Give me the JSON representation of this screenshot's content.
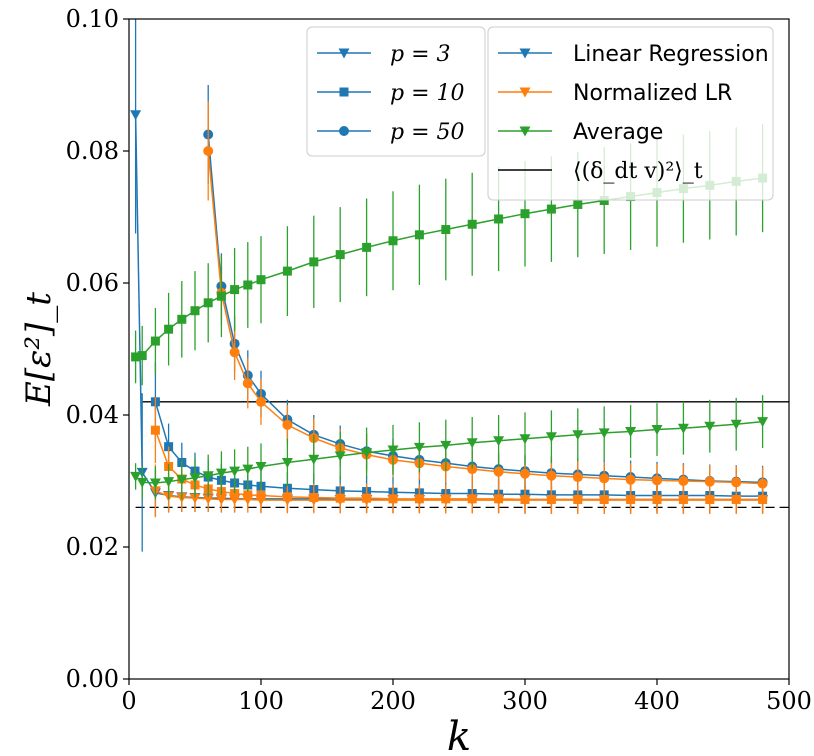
{
  "chart_data": {
    "type": "line",
    "xlabel": "k",
    "ylabel": "E[ε²]_t",
    "xlim": [
      0,
      500
    ],
    "ylim": [
      0.0,
      0.1
    ],
    "x_ticks": [
      "0",
      "100",
      "200",
      "300",
      "400",
      "500"
    ],
    "y_ticks": [
      "0.00",
      "0.02",
      "0.04",
      "0.06",
      "0.08",
      "0.10"
    ],
    "x_tick_values": [
      0,
      100,
      200,
      300,
      400,
      500
    ],
    "y_tick_values": [
      0.0,
      0.02,
      0.04,
      0.06,
      0.08,
      0.1
    ],
    "grid": false,
    "legend_p": {
      "placement": "top-center",
      "entries": [
        {
          "label": "p = 3",
          "marker": "triangle-down"
        },
        {
          "label": "p = 10",
          "marker": "square"
        },
        {
          "label": "p = 50",
          "marker": "circle"
        }
      ]
    },
    "legend_method": {
      "placement": "top-right",
      "entries": [
        {
          "label": "Linear Regression",
          "color": "#1f77b4",
          "marker": "triangle-down"
        },
        {
          "label": "Normalized LR",
          "color": "#ff7f0e",
          "marker": "triangle-down"
        },
        {
          "label": "Average",
          "color": "#2ca02c",
          "marker": "triangle-down"
        },
        {
          "label": "⟨(δ_dt v)²⟩_t",
          "color": "#000000",
          "marker": "line"
        }
      ]
    },
    "colors": {
      "linear_regression": "#1f77b4",
      "normalized_lr": "#ff7f0e",
      "average": "#2ca02c",
      "reference": "#000000"
    },
    "reference_lines": [
      {
        "y": 0.042,
        "style": "solid"
      },
      {
        "y": 0.026,
        "style": "dashed"
      }
    ],
    "series": [
      {
        "method": "Linear Regression",
        "p": 3,
        "marker": "triangle-down",
        "color": "#1f77b4",
        "x": [
          5,
          10,
          20,
          30,
          40,
          50,
          60,
          70,
          80,
          100,
          120,
          140,
          160,
          180,
          200,
          220,
          240,
          260,
          280,
          300,
          320,
          340,
          360,
          380,
          400,
          420,
          440,
          460,
          480
        ],
        "y": [
          0.0855,
          0.0313,
          0.0282,
          0.0278,
          0.0276,
          0.0275,
          0.0274,
          0.0274,
          0.0273,
          0.0273,
          0.0273,
          0.0273,
          0.0272,
          0.0272,
          0.0272,
          0.0272,
          0.0272,
          0.0272,
          0.0272,
          0.0272,
          0.0272,
          0.0272,
          0.0272,
          0.0272,
          0.0272,
          0.0272,
          0.0272,
          0.0272,
          0.0272
        ],
        "err": [
          0.018,
          0.012,
          0.0035,
          0.0025,
          0.0023,
          0.0022,
          0.0021,
          0.0021,
          0.002,
          0.002,
          0.002,
          0.002,
          0.002,
          0.002,
          0.002,
          0.002,
          0.002,
          0.002,
          0.002,
          0.002,
          0.002,
          0.002,
          0.002,
          0.002,
          0.002,
          0.002,
          0.002,
          0.002,
          0.002
        ]
      },
      {
        "method": "Linear Regression",
        "p": 10,
        "marker": "square",
        "color": "#1f77b4",
        "x": [
          20,
          30,
          40,
          50,
          60,
          70,
          80,
          90,
          100,
          120,
          140,
          160,
          180,
          200,
          220,
          240,
          260,
          280,
          300,
          320,
          340,
          360,
          380,
          400,
          420,
          440,
          460,
          480
        ],
        "y": [
          0.042,
          0.0352,
          0.0328,
          0.0315,
          0.0306,
          0.0301,
          0.0297,
          0.0294,
          0.0292,
          0.0289,
          0.0287,
          0.0285,
          0.0284,
          0.0283,
          0.0282,
          0.0281,
          0.0281,
          0.028,
          0.028,
          0.0279,
          0.0279,
          0.0279,
          0.0278,
          0.0278,
          0.0278,
          0.0278,
          0.0277,
          0.0277
        ],
        "err": [
          0.006,
          0.0035,
          0.003,
          0.0028,
          0.0026,
          0.0025,
          0.0025,
          0.0024,
          0.0024,
          0.0024,
          0.0024,
          0.0023,
          0.0023,
          0.0023,
          0.0023,
          0.0023,
          0.0023,
          0.0023,
          0.0023,
          0.0023,
          0.0023,
          0.0023,
          0.0023,
          0.0023,
          0.0023,
          0.0023,
          0.0023,
          0.0023
        ]
      },
      {
        "method": "Linear Regression",
        "p": 50,
        "marker": "circle",
        "color": "#1f77b4",
        "x": [
          60,
          70,
          80,
          90,
          100,
          120,
          140,
          160,
          180,
          200,
          220,
          240,
          260,
          280,
          300,
          320,
          340,
          360,
          380,
          400,
          420,
          440,
          460,
          480
        ],
        "y": [
          0.0825,
          0.0595,
          0.0508,
          0.046,
          0.0432,
          0.0393,
          0.037,
          0.0356,
          0.0345,
          0.0338,
          0.0332,
          0.0327,
          0.0322,
          0.0318,
          0.0315,
          0.0312,
          0.031,
          0.0308,
          0.0306,
          0.0304,
          0.0302,
          0.03,
          0.0299,
          0.0298
        ],
        "err": [
          0.0075,
          0.005,
          0.0042,
          0.0038,
          0.0035,
          0.003,
          0.003,
          0.0028,
          0.0027,
          0.0026,
          0.0025,
          0.0025,
          0.0025,
          0.0025,
          0.0025,
          0.0025,
          0.0025,
          0.0025,
          0.0025,
          0.0025,
          0.0025,
          0.0025,
          0.0025,
          0.0025
        ]
      },
      {
        "method": "Normalized LR",
        "p": 3,
        "marker": "triangle-down",
        "color": "#ff7f0e",
        "x": [
          20,
          30,
          40,
          50,
          60,
          70,
          80,
          90,
          100,
          120,
          140,
          160,
          180,
          200,
          220,
          240,
          260,
          280,
          300,
          320,
          340,
          360,
          380,
          400,
          420,
          440,
          460,
          480
        ],
        "y": [
          0.0285,
          0.0277,
          0.0275,
          0.0274,
          0.0273,
          0.0272,
          0.0272,
          0.0272,
          0.0271,
          0.0271,
          0.0271,
          0.0271,
          0.0271,
          0.0271,
          0.0271,
          0.0271,
          0.0271,
          0.0271,
          0.0271,
          0.0271,
          0.0271,
          0.0271,
          0.0271,
          0.0271,
          0.0271,
          0.0271,
          0.0271,
          0.0271
        ],
        "err": [
          0.004,
          0.0025,
          0.0022,
          0.0021,
          0.002,
          0.002,
          0.002,
          0.002,
          0.002,
          0.002,
          0.002,
          0.002,
          0.002,
          0.002,
          0.002,
          0.002,
          0.002,
          0.002,
          0.002,
          0.002,
          0.002,
          0.002,
          0.002,
          0.002,
          0.002,
          0.002,
          0.002,
          0.002
        ]
      },
      {
        "method": "Normalized LR",
        "p": 10,
        "marker": "square",
        "color": "#ff7f0e",
        "x": [
          20,
          30,
          40,
          50,
          60,
          70,
          80,
          90,
          100,
          120,
          140,
          160,
          180,
          200,
          220,
          240,
          260,
          280,
          300,
          320,
          340,
          360,
          380,
          400,
          420,
          440,
          460,
          480
        ],
        "y": [
          0.0377,
          0.0322,
          0.0303,
          0.0294,
          0.0288,
          0.0284,
          0.0281,
          0.0279,
          0.0278,
          0.0276,
          0.0275,
          0.0274,
          0.0274,
          0.0273,
          0.0273,
          0.0273,
          0.0273,
          0.0273,
          0.0272,
          0.0272,
          0.0272,
          0.0272,
          0.0272,
          0.0272,
          0.0272,
          0.0272,
          0.0272,
          0.0272
        ],
        "err": [
          0.005,
          0.003,
          0.0026,
          0.0024,
          0.0023,
          0.0022,
          0.0022,
          0.0022,
          0.0022,
          0.0022,
          0.0022,
          0.0022,
          0.0022,
          0.0022,
          0.0022,
          0.0022,
          0.0022,
          0.0022,
          0.0022,
          0.0022,
          0.0022,
          0.0022,
          0.0022,
          0.0022,
          0.0022,
          0.0022,
          0.0022,
          0.0022
        ]
      },
      {
        "method": "Normalized LR",
        "p": 50,
        "marker": "circle",
        "color": "#ff7f0e",
        "x": [
          60,
          70,
          80,
          90,
          100,
          120,
          140,
          160,
          180,
          200,
          220,
          240,
          260,
          280,
          300,
          320,
          340,
          360,
          380,
          400,
          420,
          440,
          460,
          480
        ],
        "y": [
          0.08,
          0.0585,
          0.0495,
          0.0448,
          0.042,
          0.0385,
          0.0365,
          0.035,
          0.034,
          0.0332,
          0.0327,
          0.0322,
          0.0318,
          0.0314,
          0.0311,
          0.0308,
          0.0306,
          0.0304,
          0.0302,
          0.0301,
          0.03,
          0.0299,
          0.0298,
          0.0296
        ],
        "err": [
          0.0075,
          0.005,
          0.0042,
          0.0038,
          0.0035,
          0.003,
          0.003,
          0.0028,
          0.0027,
          0.0026,
          0.0025,
          0.0025,
          0.0025,
          0.0025,
          0.0025,
          0.0025,
          0.0025,
          0.0025,
          0.0025,
          0.0025,
          0.0025,
          0.0025,
          0.0025,
          0.0025
        ]
      },
      {
        "method": "Average",
        "p": 3,
        "marker": "triangle-down",
        "color": "#2ca02c",
        "x": [
          5,
          10,
          20,
          30,
          40,
          50,
          60,
          70,
          80,
          90,
          100,
          120,
          140,
          160,
          180,
          200,
          220,
          240,
          260,
          280,
          300,
          320,
          340,
          360,
          380,
          400,
          420,
          440,
          460,
          480
        ],
        "y": [
          0.0307,
          0.0298,
          0.0297,
          0.0299,
          0.0302,
          0.0305,
          0.0308,
          0.0312,
          0.0315,
          0.0318,
          0.0322,
          0.0328,
          0.0333,
          0.0338,
          0.0343,
          0.0347,
          0.0351,
          0.0354,
          0.0358,
          0.0361,
          0.0364,
          0.0367,
          0.037,
          0.0373,
          0.0375,
          0.0378,
          0.038,
          0.0383,
          0.0386,
          0.039
        ],
        "err": [
          0.002,
          0.0025,
          0.0025,
          0.0027,
          0.003,
          0.003,
          0.0032,
          0.0033,
          0.0033,
          0.0034,
          0.0035,
          0.0036,
          0.0037,
          0.0037,
          0.0038,
          0.0038,
          0.0038,
          0.0039,
          0.0039,
          0.0039,
          0.004,
          0.004,
          0.004,
          0.004,
          0.004,
          0.004,
          0.004,
          0.004,
          0.004,
          0.004
        ]
      },
      {
        "method": "Average",
        "p": 10,
        "marker": "square",
        "color": "#2ca02c",
        "x": [
          5,
          10,
          20,
          30,
          40,
          50,
          60,
          70,
          80,
          90,
          100,
          120,
          140,
          160,
          180,
          200,
          220,
          240,
          260,
          280,
          300,
          320,
          340,
          360,
          380,
          400,
          420,
          440,
          460,
          480
        ],
        "y": [
          0.0488,
          0.049,
          0.0512,
          0.053,
          0.0545,
          0.0558,
          0.057,
          0.058,
          0.059,
          0.0597,
          0.0605,
          0.0618,
          0.0632,
          0.0643,
          0.0654,
          0.0664,
          0.0673,
          0.0681,
          0.0689,
          0.0697,
          0.0705,
          0.0712,
          0.0719,
          0.0725,
          0.0731,
          0.0737,
          0.0743,
          0.0748,
          0.0754,
          0.0759
        ],
        "err": [
          0.004,
          0.0045,
          0.005,
          0.0055,
          0.0058,
          0.006,
          0.006,
          0.0062,
          0.0063,
          0.0065,
          0.0066,
          0.0068,
          0.007,
          0.0072,
          0.0074,
          0.0075,
          0.0076,
          0.0077,
          0.0078,
          0.0079,
          0.008,
          0.008,
          0.008,
          0.0081,
          0.0081,
          0.0082,
          0.0082,
          0.0082,
          0.0082,
          0.0082
        ]
      }
    ]
  }
}
